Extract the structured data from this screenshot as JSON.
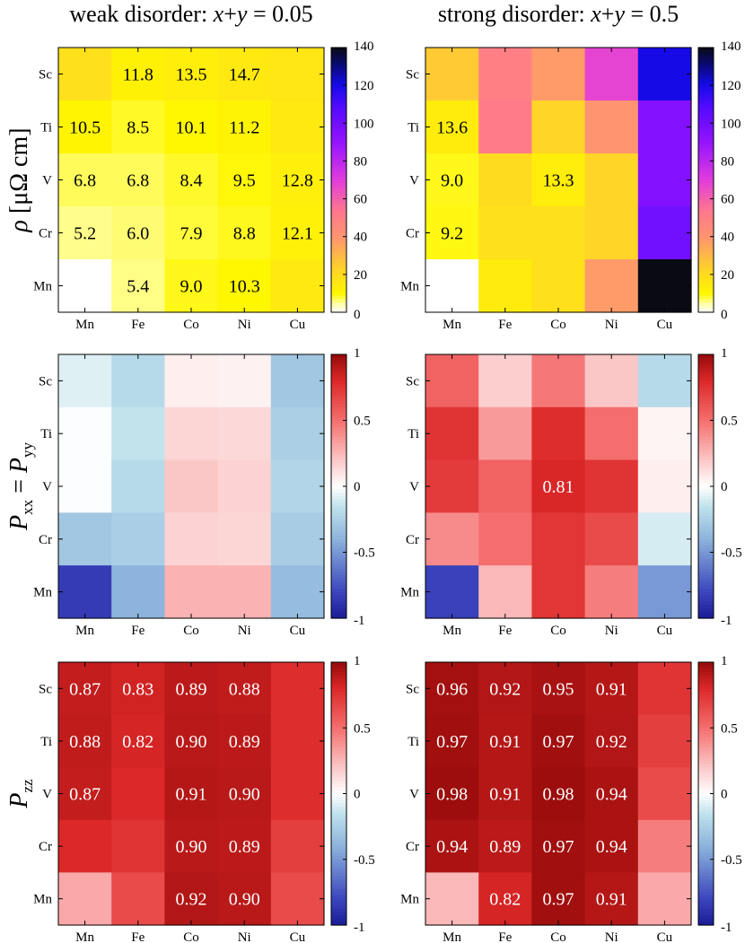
{
  "column_titles": [
    "weak disorder: x+y = 0.05",
    "strong disorder: x+y = 0.5"
  ],
  "row_labels": [
    "ρ [μΩ cm]",
    "Pxx = Pyy",
    "Pzz"
  ],
  "chart_data": [
    {
      "type": "heatmap",
      "title": "weak disorder: x+y = 0.05",
      "quantity": "rho",
      "ylabel": "ρ [μΩ cm]",
      "x_categories": [
        "Mn",
        "Fe",
        "Co",
        "Ni",
        "Cu"
      ],
      "y_categories": [
        "Sc",
        "Ti",
        "V",
        "Cr",
        "Mn"
      ],
      "values": [
        [
          18,
          11.8,
          13.5,
          14.7,
          16
        ],
        [
          10.5,
          8.5,
          10.1,
          11.2,
          15
        ],
        [
          6.8,
          6.8,
          8.4,
          9.5,
          12.8
        ],
        [
          5.2,
          6.0,
          7.9,
          8.8,
          12.1
        ],
        [
          0,
          5.4,
          9.0,
          10.3,
          15
        ]
      ],
      "labels": [
        [
          "",
          "11.8",
          "13.5",
          "14.7",
          ""
        ],
        [
          "10.5",
          "8.5",
          "10.1",
          "11.2",
          ""
        ],
        [
          "6.8",
          "6.8",
          "8.4",
          "9.5",
          "12.8"
        ],
        [
          "5.2",
          "6.0",
          "7.9",
          "8.8",
          "12.1"
        ],
        [
          "",
          "5.4",
          "9.0",
          "10.3",
          ""
        ]
      ],
      "colorbar": {
        "min": 0,
        "max": 140,
        "ticks": [
          "0",
          "20",
          "40",
          "60",
          "80",
          "100",
          "120",
          "140"
        ]
      },
      "colormap": "white-yellow-pink-purple-blue-black"
    },
    {
      "type": "heatmap",
      "title": "strong disorder: x+y = 0.5",
      "quantity": "rho",
      "x_categories": [
        "Mn",
        "Fe",
        "Co",
        "Ni",
        "Cu"
      ],
      "y_categories": [
        "Sc",
        "Ti",
        "V",
        "Cr",
        "Mn"
      ],
      "values": [
        [
          25,
          50,
          38,
          68,
          120
        ],
        [
          13.6,
          52,
          22,
          40,
          95
        ],
        [
          9.0,
          20,
          13.3,
          22,
          95
        ],
        [
          9.2,
          18,
          18,
          22,
          100
        ],
        [
          0,
          14,
          18,
          38,
          140
        ]
      ],
      "labels": [
        [
          "",
          "",
          "",
          "",
          ""
        ],
        [
          "13.6",
          "",
          "",
          "",
          ""
        ],
        [
          "9.0",
          "",
          "13.3",
          "",
          ""
        ],
        [
          "9.2",
          "",
          "",
          "",
          ""
        ],
        [
          "",
          "",
          "",
          "",
          ""
        ]
      ],
      "colorbar": {
        "min": 0,
        "max": 140,
        "ticks": [
          "0",
          "20",
          "40",
          "60",
          "80",
          "100",
          "120",
          "140"
        ]
      },
      "colormap": "white-yellow-pink-purple-blue-black"
    },
    {
      "type": "heatmap",
      "quantity": "Pxx",
      "ylabel": "Pxx = Pyy",
      "x_categories": [
        "Mn",
        "Fe",
        "Co",
        "Ni",
        "Cu"
      ],
      "y_categories": [
        "Sc",
        "Ti",
        "V",
        "Cr",
        "Mn"
      ],
      "values": [
        [
          -0.08,
          -0.2,
          0.06,
          0.05,
          -0.3
        ],
        [
          -0.01,
          -0.15,
          0.15,
          0.14,
          -0.25
        ],
        [
          -0.01,
          -0.2,
          0.2,
          0.16,
          -0.22
        ],
        [
          -0.3,
          -0.26,
          0.16,
          0.15,
          -0.27
        ],
        [
          -0.85,
          -0.4,
          0.27,
          0.27,
          -0.35
        ]
      ],
      "labels": [
        [
          "",
          "",
          "",
          "",
          ""
        ],
        [
          "",
          "",
          "",
          "",
          ""
        ],
        [
          "",
          "",
          "",
          "",
          ""
        ],
        [
          "",
          "",
          "",
          "",
          ""
        ],
        [
          "",
          "",
          "",
          "",
          ""
        ]
      ],
      "colorbar": {
        "min": -1,
        "max": 1,
        "ticks": [
          "-1",
          "-0.5",
          "0",
          "0.5",
          "1"
        ]
      },
      "colormap": "blue-white-red"
    },
    {
      "type": "heatmap",
      "quantity": "Pxx",
      "x_categories": [
        "Mn",
        "Fe",
        "Co",
        "Ni",
        "Cu"
      ],
      "y_categories": [
        "Sc",
        "Ti",
        "V",
        "Cr",
        "Mn"
      ],
      "values": [
        [
          0.55,
          0.17,
          0.47,
          0.2,
          -0.2
        ],
        [
          0.75,
          0.35,
          0.78,
          0.5,
          0.04
        ],
        [
          0.72,
          0.55,
          0.81,
          0.75,
          0.06
        ],
        [
          0.4,
          0.5,
          0.74,
          0.65,
          -0.1
        ],
        [
          -0.82,
          0.25,
          0.74,
          0.45,
          -0.5
        ]
      ],
      "labels": [
        [
          "",
          "",
          "",
          "",
          ""
        ],
        [
          "",
          "",
          "",
          "",
          ""
        ],
        [
          "",
          "",
          "0.81",
          "",
          ""
        ],
        [
          "",
          "",
          "",
          "",
          ""
        ],
        [
          "",
          "",
          "",
          "",
          ""
        ]
      ],
      "colorbar": {
        "min": -1,
        "max": 1,
        "ticks": [
          "-1",
          "-0.5",
          "0",
          "0.5",
          "1"
        ]
      },
      "colormap": "blue-white-red"
    },
    {
      "type": "heatmap",
      "quantity": "Pzz",
      "ylabel": "Pzz",
      "x_categories": [
        "Mn",
        "Fe",
        "Co",
        "Ni",
        "Cu"
      ],
      "y_categories": [
        "Sc",
        "Ti",
        "V",
        "Cr",
        "Mn"
      ],
      "values": [
        [
          0.87,
          0.83,
          0.89,
          0.88,
          0.78
        ],
        [
          0.88,
          0.82,
          0.9,
          0.89,
          0.78
        ],
        [
          0.87,
          0.8,
          0.91,
          0.9,
          0.78
        ],
        [
          0.8,
          0.75,
          0.9,
          0.89,
          0.7
        ],
        [
          0.3,
          0.65,
          0.92,
          0.9,
          0.65
        ]
      ],
      "labels": [
        [
          "0.87",
          "0.83",
          "0.89",
          "0.88",
          ""
        ],
        [
          "0.88",
          "0.82",
          "0.90",
          "0.89",
          ""
        ],
        [
          "0.87",
          "",
          "0.91",
          "0.90",
          ""
        ],
        [
          "",
          "",
          "0.90",
          "0.89",
          ""
        ],
        [
          "",
          "",
          "0.92",
          "0.90",
          ""
        ]
      ],
      "colorbar": {
        "min": -1,
        "max": 1,
        "ticks": [
          "-1",
          "-0.5",
          "0",
          "0.5",
          "1"
        ]
      },
      "colormap": "blue-white-red"
    },
    {
      "type": "heatmap",
      "quantity": "Pzz",
      "x_categories": [
        "Mn",
        "Fe",
        "Co",
        "Ni",
        "Cu"
      ],
      "y_categories": [
        "Sc",
        "Ti",
        "V",
        "Cr",
        "Mn"
      ],
      "values": [
        [
          0.96,
          0.92,
          0.95,
          0.91,
          0.75
        ],
        [
          0.97,
          0.91,
          0.97,
          0.92,
          0.7
        ],
        [
          0.98,
          0.91,
          0.98,
          0.94,
          0.65
        ],
        [
          0.94,
          0.89,
          0.97,
          0.94,
          0.45
        ],
        [
          0.25,
          0.82,
          0.97,
          0.91,
          0.3
        ]
      ],
      "labels": [
        [
          "0.96",
          "0.92",
          "0.95",
          "0.91",
          ""
        ],
        [
          "0.97",
          "0.91",
          "0.97",
          "0.92",
          ""
        ],
        [
          "0.98",
          "0.91",
          "0.98",
          "0.94",
          ""
        ],
        [
          "0.94",
          "0.89",
          "0.97",
          "0.94",
          ""
        ],
        [
          "",
          "0.82",
          "0.97",
          "0.91",
          ""
        ]
      ],
      "colorbar": {
        "min": -1,
        "max": 1,
        "ticks": [
          "-1",
          "-0.5",
          "0",
          "0.5",
          "1"
        ]
      },
      "colormap": "blue-white-red"
    }
  ]
}
